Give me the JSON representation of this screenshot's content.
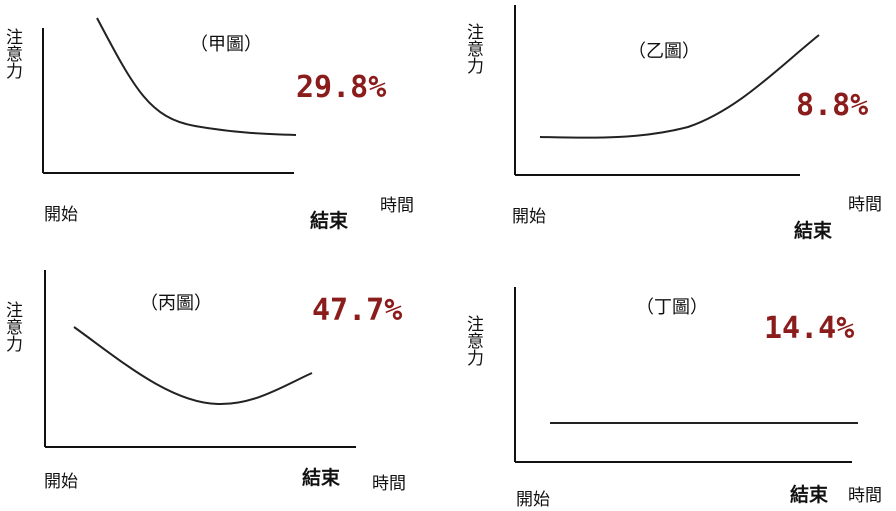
{
  "colors": {
    "percent": "#8b1c1c",
    "ink": "#111111"
  },
  "panels": [
    {
      "id": "jia",
      "title": "（甲圖）",
      "percent": "29.8%",
      "y_label": "注意力",
      "start_label": "開始",
      "end_label": "結束",
      "time_label": "時間",
      "curve_shape": "decreasing"
    },
    {
      "id": "yi",
      "title": "（乙圖）",
      "percent": "8.8%",
      "y_label": "注意力",
      "start_label": "開始",
      "end_label": "結束",
      "time_label": "時間",
      "curve_shape": "increasing"
    },
    {
      "id": "bing",
      "title": "（丙圖）",
      "percent": "47.7%",
      "y_label": "注意力",
      "start_label": "開始",
      "end_label": "結束",
      "time_label": "時間",
      "curve_shape": "u-shaped"
    },
    {
      "id": "ding",
      "title": "（丁圖）",
      "percent": "14.4%",
      "y_label": "注意力",
      "start_label": "開始",
      "end_label": "結束",
      "time_label": "時間",
      "curve_shape": "flat"
    }
  ]
}
